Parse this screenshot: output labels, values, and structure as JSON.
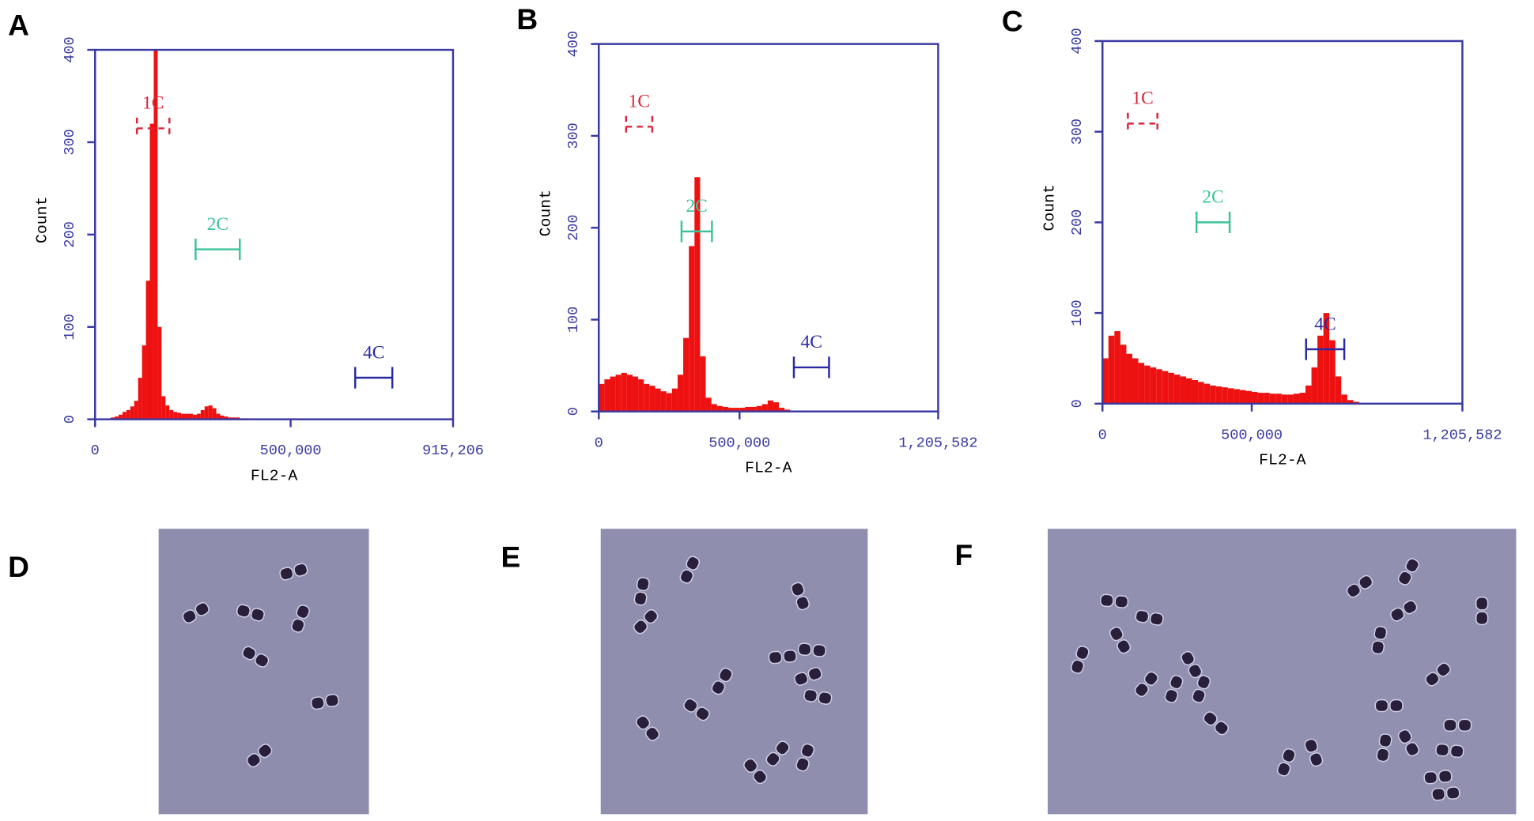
{
  "chart_data": [
    {
      "type": "histogram",
      "panel": "A",
      "xlabel": "FL2-A",
      "ylabel": "Count",
      "color": "#ee1111",
      "xlim": [
        0,
        915206
      ],
      "ylim": [
        0,
        400
      ],
      "xticks": [
        0,
        {
          "value": 500000,
          "label": "500,000"
        },
        {
          "value": 915206,
          "label": "915,206"
        }
      ],
      "yticks": [
        0,
        100,
        200,
        300,
        400
      ],
      "bins": [
        40000,
        50000,
        60000,
        70000,
        80000,
        90000,
        100000,
        110000,
        120000,
        130000,
        140000,
        150000,
        160000,
        170000,
        180000,
        190000,
        200000,
        210000,
        220000,
        230000,
        240000,
        250000,
        260000,
        270000,
        280000,
        290000,
        300000,
        310000,
        320000,
        330000,
        340000,
        350000,
        360000,
        370000,
        380000,
        390000,
        400000
      ],
      "values": [
        2,
        3,
        5,
        8,
        10,
        14,
        20,
        45,
        80,
        150,
        320,
        400,
        100,
        25,
        15,
        10,
        8,
        7,
        6,
        6,
        6,
        5,
        6,
        10,
        14,
        15,
        12,
        6,
        4,
        3,
        2,
        2,
        2,
        1,
        1,
        1
      ],
      "gates": [
        {
          "label": "1C",
          "range": [
            107000,
            190000
          ],
          "y": 315,
          "color": "#d9263c",
          "dashed": true
        },
        {
          "label": "2C",
          "range": [
            257000,
            370000
          ],
          "y": 184,
          "color": "#3cc39a",
          "dashed": false
        },
        {
          "label": "4C",
          "range": [
            665000,
            760000
          ],
          "y": 45,
          "color": "#2a2aa0",
          "dashed": false
        }
      ]
    },
    {
      "type": "histogram",
      "panel": "B",
      "xlabel": "FL2-A",
      "ylabel": "Count",
      "color": "#ee1111",
      "xlim": [
        0,
        1205582
      ],
      "ylim": [
        0,
        400
      ],
      "xticks": [
        0,
        {
          "value": 500000,
          "label": "500,000"
        },
        {
          "value": 1205582,
          "label": "1,205,582"
        }
      ],
      "yticks": [
        0,
        100,
        200,
        300,
        400
      ],
      "bins": [
        0,
        20000,
        40000,
        60000,
        80000,
        100000,
        120000,
        140000,
        160000,
        180000,
        200000,
        220000,
        240000,
        260000,
        280000,
        300000,
        320000,
        340000,
        360000,
        380000,
        400000,
        420000,
        440000,
        460000,
        480000,
        500000,
        520000,
        540000,
        560000,
        580000,
        600000,
        620000,
        640000,
        660000,
        680000,
        700000
      ],
      "values": [
        30,
        35,
        38,
        40,
        42,
        40,
        38,
        35,
        30,
        28,
        25,
        22,
        20,
        25,
        40,
        80,
        180,
        255,
        60,
        15,
        8,
        6,
        5,
        4,
        4,
        4,
        5,
        5,
        6,
        8,
        12,
        10,
        4,
        2,
        1
      ],
      "gates": [
        {
          "label": "1C",
          "range": [
            97000,
            190000
          ],
          "y": 310,
          "color": "#d9263c",
          "dashed": true
        },
        {
          "label": "2C",
          "range": [
            294000,
            402000
          ],
          "y": 196,
          "color": "#3cc39a",
          "dashed": false
        },
        {
          "label": "4C",
          "range": [
            693000,
            818000
          ],
          "y": 48,
          "color": "#2a2aa0",
          "dashed": false
        }
      ]
    },
    {
      "type": "histogram",
      "panel": "C",
      "xlabel": "FL2-A",
      "ylabel": "Count",
      "color": "#ee1111",
      "xlim": [
        0,
        1205582
      ],
      "ylim": [
        0,
        400
      ],
      "xticks": [
        0,
        {
          "value": 500000,
          "label": "500,000"
        },
        {
          "value": 1205582,
          "label": "1,205,582"
        }
      ],
      "yticks": [
        0,
        100,
        200,
        300,
        400
      ],
      "bins": [
        0,
        20000,
        40000,
        60000,
        80000,
        100000,
        120000,
        140000,
        160000,
        180000,
        200000,
        220000,
        240000,
        260000,
        280000,
        300000,
        320000,
        340000,
        360000,
        380000,
        400000,
        420000,
        440000,
        460000,
        480000,
        500000,
        520000,
        540000,
        560000,
        580000,
        600000,
        620000,
        640000,
        660000,
        680000,
        700000,
        720000,
        740000,
        760000,
        780000,
        800000,
        820000,
        840000,
        860000
      ],
      "values": [
        50,
        75,
        80,
        65,
        55,
        50,
        45,
        42,
        40,
        38,
        36,
        34,
        32,
        30,
        28,
        26,
        24,
        22,
        20,
        19,
        18,
        17,
        16,
        15,
        14,
        13,
        12,
        12,
        11,
        11,
        10,
        10,
        11,
        12,
        20,
        40,
        75,
        100,
        70,
        30,
        10,
        4,
        2
      ],
      "gates": [
        {
          "label": "1C",
          "range": [
            85000,
            184000
          ],
          "y": 309,
          "color": "#d9263c",
          "dashed": true
        },
        {
          "label": "2C",
          "range": [
            315000,
            426000
          ],
          "y": 200,
          "color": "#3cc39a",
          "dashed": false
        },
        {
          "label": "4C",
          "range": [
            682000,
            810000
          ],
          "y": 60,
          "color": "#2a2aa0",
          "dashed": false
        }
      ]
    }
  ],
  "images": [
    {
      "panel": "D"
    },
    {
      "panel": "E"
    },
    {
      "panel": "F"
    }
  ]
}
